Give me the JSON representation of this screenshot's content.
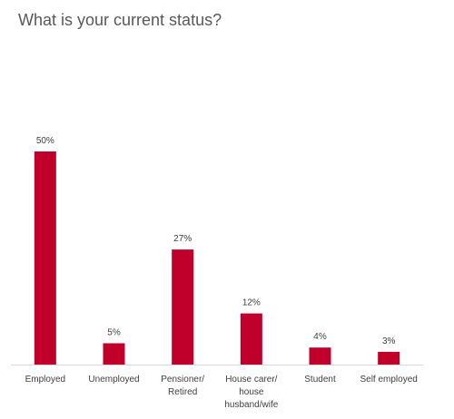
{
  "chart_data": {
    "type": "bar",
    "title": "What is your current status?",
    "categories": [
      "Employed",
      "Unemployed",
      "Pensioner/ Retired",
      "House carer/ house husband/wife",
      "Student",
      "Self employed"
    ],
    "category_lines": [
      [
        "Employed"
      ],
      [
        "Unemployed"
      ],
      [
        "Pensioner/",
        "Retired"
      ],
      [
        "House carer/",
        "house",
        "husband/wife"
      ],
      [
        "Student"
      ],
      [
        "Self employed"
      ]
    ],
    "values": [
      50,
      5,
      27,
      12,
      4,
      3
    ],
    "data_labels": [
      "50%",
      "5%",
      "27%",
      "12%",
      "4%",
      "3%"
    ],
    "unit": "%",
    "xlabel": "",
    "ylabel": "",
    "ylim": [
      0,
      50
    ],
    "grid": false,
    "legend": "none",
    "bar_color": "#c0002a",
    "axis_color": "#d9d9d9"
  }
}
